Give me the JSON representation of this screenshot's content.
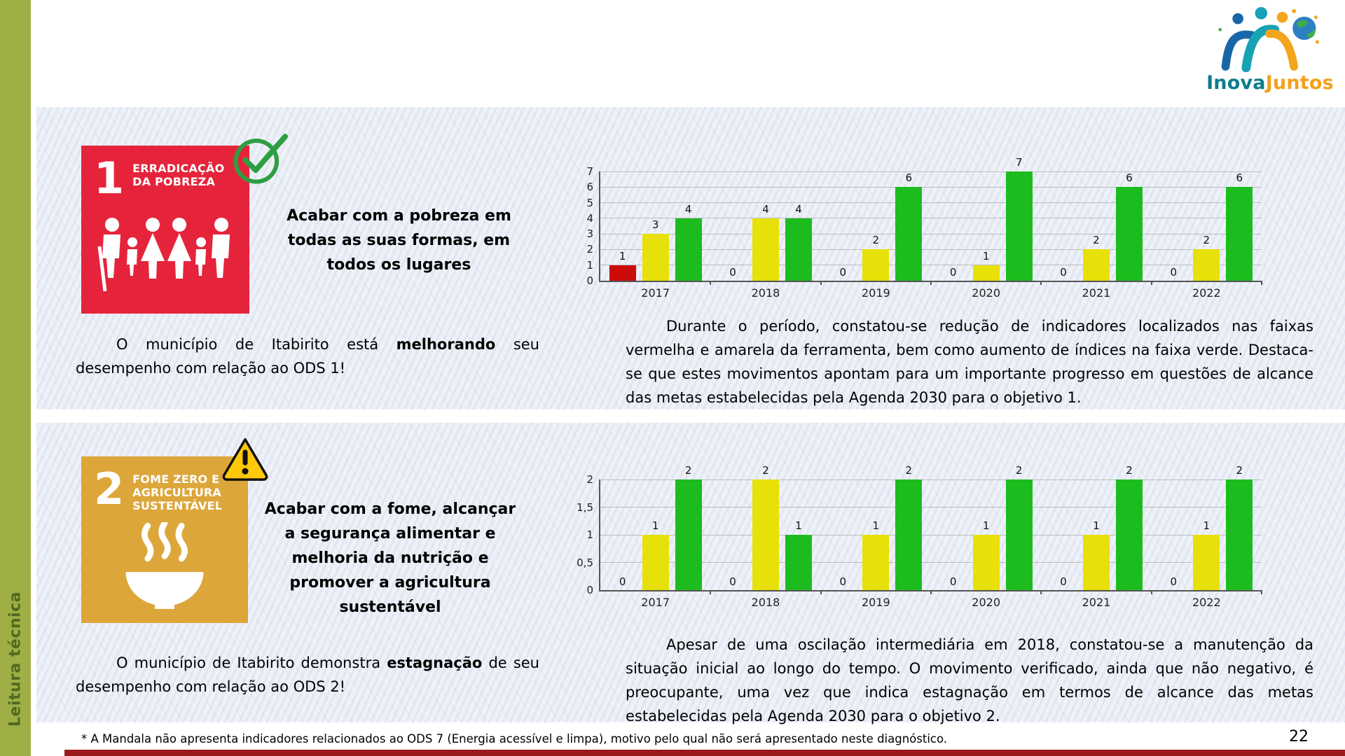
{
  "page": {
    "sidebar_label": "Leitura técnica",
    "footer_note": "* A Mandala não apresenta indicadores relacionados ao ODS 7 (Energia acessível e limpa), motivo pelo qual não será apresentado neste diagnóstico.",
    "page_number": "22"
  },
  "logo": {
    "inova": "Inova",
    "juntos": "Juntos"
  },
  "colors": {
    "ods1_red": "#e5243b",
    "ods2_gold": "#dda63a",
    "bar_red": "#cc0b0b",
    "bar_yellow": "#e8e009",
    "bar_green": "#1cbc1f",
    "check_green": "#2f9e41",
    "warning_yellow": "#ffc808",
    "sidebar_green": "#9fae45",
    "bottom_bar_red": "#9a1a1c"
  },
  "sections": [
    {
      "ods_number": "1",
      "badge_lines": [
        "ERRADICAÇÃO",
        "DA POBREZA"
      ],
      "status": "check",
      "goal_text": "Acabar com a pobreza em todas as suas formas, em todos os lugares",
      "assessment": {
        "prefix": "O município de Itabirito está ",
        "bold": "melhorando",
        "suffix": " seu desempenho com relação ao ODS 1!"
      },
      "analysis": "Durante o período, constatou-se redução de indicadores localizados nas faixas vermelha e amarela da ferramenta, bem como aumento de índices na faixa verde. Destaca-se que estes movimentos apontam para um importante progresso em questões de alcance das metas estabelecidas pela Agenda 2030 para o objetivo 1."
    },
    {
      "ods_number": "2",
      "badge_lines": [
        "FOME ZERO E",
        "AGRICULTURA",
        "SUSTENTÁVEL"
      ],
      "status": "warning",
      "goal_text": "Acabar com a fome, alcançar a segurança alimentar e melhoria da nutrição e promover a agricultura sustentável",
      "assessment": {
        "prefix": "O município de Itabirito demonstra ",
        "bold": "estagnação",
        "suffix": " de seu desempenho com relação ao ODS 2!"
      },
      "analysis": "Apesar de uma oscilação intermediária em 2018, constatou-se a manutenção da situação inicial ao longo do tempo. O movimento verificado, ainda que não negativo, é preocupante, uma vez que indica estagnação em termos de alcance das metas estabelecidas pela Agenda 2030 para o objetivo 2."
    }
  ],
  "chart_data": [
    {
      "type": "bar",
      "title": "",
      "categories": [
        "2017",
        "2018",
        "2019",
        "2020",
        "2021",
        "2022"
      ],
      "series": [
        {
          "name": "vermelho",
          "color": "#cc0b0b",
          "values": [
            1,
            0,
            0,
            0,
            0,
            0
          ]
        },
        {
          "name": "amarelo",
          "color": "#e8e009",
          "values": [
            3,
            4,
            2,
            1,
            2,
            2
          ]
        },
        {
          "name": "verde",
          "color": "#1cbc1f",
          "values": [
            4,
            4,
            6,
            7,
            6,
            6
          ]
        }
      ],
      "ylim": [
        0,
        7
      ],
      "yticks": [
        0,
        1,
        2,
        3,
        4,
        5,
        6,
        7
      ],
      "ytick_labels": [
        "0",
        "1",
        "2",
        "3",
        "4",
        "5",
        "6",
        "7"
      ],
      "grid": true,
      "legend": "none",
      "data_labels": true
    },
    {
      "type": "bar",
      "title": "",
      "categories": [
        "2017",
        "2018",
        "2019",
        "2020",
        "2021",
        "2022"
      ],
      "series": [
        {
          "name": "vermelho",
          "color": "#cc0b0b",
          "values": [
            0,
            0,
            0,
            0,
            0,
            0
          ]
        },
        {
          "name": "amarelo",
          "color": "#e8e009",
          "values": [
            1,
            2,
            1,
            1,
            1,
            1
          ]
        },
        {
          "name": "verde",
          "color": "#1cbc1f",
          "values": [
            2,
            1,
            2,
            2,
            2,
            2
          ]
        }
      ],
      "ylim": [
        0,
        2
      ],
      "yticks": [
        0,
        0.5,
        1,
        1.5,
        2
      ],
      "ytick_labels": [
        "0",
        "0,5",
        "1",
        "1,5",
        "2"
      ],
      "grid": true,
      "legend": "none",
      "data_labels": true
    }
  ]
}
